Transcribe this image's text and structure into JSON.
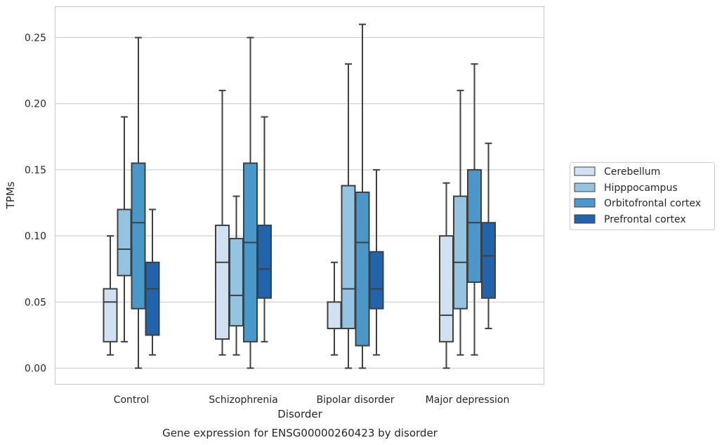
{
  "chart_data": {
    "type": "box",
    "caption": "Gene expression for ENSG00000260423 by disorder",
    "xlabel": "Disorder",
    "ylabel": "TPMs",
    "ylim": [
      -0.012,
      0.274
    ],
    "yticks": [
      "0.00",
      "0.05",
      "0.10",
      "0.15",
      "0.20",
      "0.25"
    ],
    "ytick_values": [
      0,
      0.05,
      0.1,
      0.15,
      0.2,
      0.25
    ],
    "grid": true,
    "legend_position": "right",
    "categories": [
      "Control",
      "Schizophrenia",
      "Bipolar disorder",
      "Major depression"
    ],
    "series": [
      {
        "name": "Cerebellum",
        "color": "#d0e1f2",
        "boxes": [
          {
            "whislo": 0.01,
            "q1": 0.02,
            "med": 0.05,
            "q3": 0.06,
            "whishi": 0.1
          },
          {
            "whislo": 0.01,
            "q1": 0.022,
            "med": 0.08,
            "q3": 0.108,
            "whishi": 0.21
          },
          {
            "whislo": 0.01,
            "q1": 0.03,
            "med": 0.03,
            "q3": 0.05,
            "whishi": 0.08
          },
          {
            "whislo": 0.0,
            "q1": 0.02,
            "med": 0.04,
            "q3": 0.1,
            "whishi": 0.14
          }
        ]
      },
      {
        "name": "Hipppocampus",
        "color": "#94c4df",
        "boxes": [
          {
            "whislo": 0.02,
            "q1": 0.07,
            "med": 0.09,
            "q3": 0.12,
            "whishi": 0.19
          },
          {
            "whislo": 0.01,
            "q1": 0.032,
            "med": 0.055,
            "q3": 0.098,
            "whishi": 0.13
          },
          {
            "whislo": 0.0,
            "q1": 0.03,
            "med": 0.06,
            "q3": 0.138,
            "whishi": 0.23
          },
          {
            "whislo": 0.01,
            "q1": 0.045,
            "med": 0.08,
            "q3": 0.13,
            "whishi": 0.21
          }
        ]
      },
      {
        "name": "Orbitofrontal cortex",
        "color": "#4a98c9",
        "boxes": [
          {
            "whislo": 0.0,
            "q1": 0.045,
            "med": 0.11,
            "q3": 0.155,
            "whishi": 0.25
          },
          {
            "whislo": 0.0,
            "q1": 0.02,
            "med": 0.095,
            "q3": 0.155,
            "whishi": 0.25
          },
          {
            "whislo": 0.0,
            "q1": 0.017,
            "med": 0.095,
            "q3": 0.133,
            "whishi": 0.26
          },
          {
            "whislo": 0.01,
            "q1": 0.065,
            "med": 0.11,
            "q3": 0.15,
            "whishi": 0.23
          }
        ]
      },
      {
        "name": "Prefrontal cortex",
        "color": "#2164ab",
        "boxes": [
          {
            "whislo": 0.01,
            "q1": 0.025,
            "med": 0.06,
            "q3": 0.08,
            "whishi": 0.12
          },
          {
            "whislo": 0.02,
            "q1": 0.053,
            "med": 0.075,
            "q3": 0.108,
            "whishi": 0.19
          },
          {
            "whislo": 0.01,
            "q1": 0.045,
            "med": 0.06,
            "q3": 0.088,
            "whishi": 0.15
          },
          {
            "whislo": 0.03,
            "q1": 0.053,
            "med": 0.085,
            "q3": 0.11,
            "whishi": 0.17
          }
        ]
      }
    ],
    "colors": {
      "grid": "#cccccc",
      "frame": "#cccccc",
      "line": "#3f3f3f",
      "legend_border": "#cccccc"
    }
  }
}
